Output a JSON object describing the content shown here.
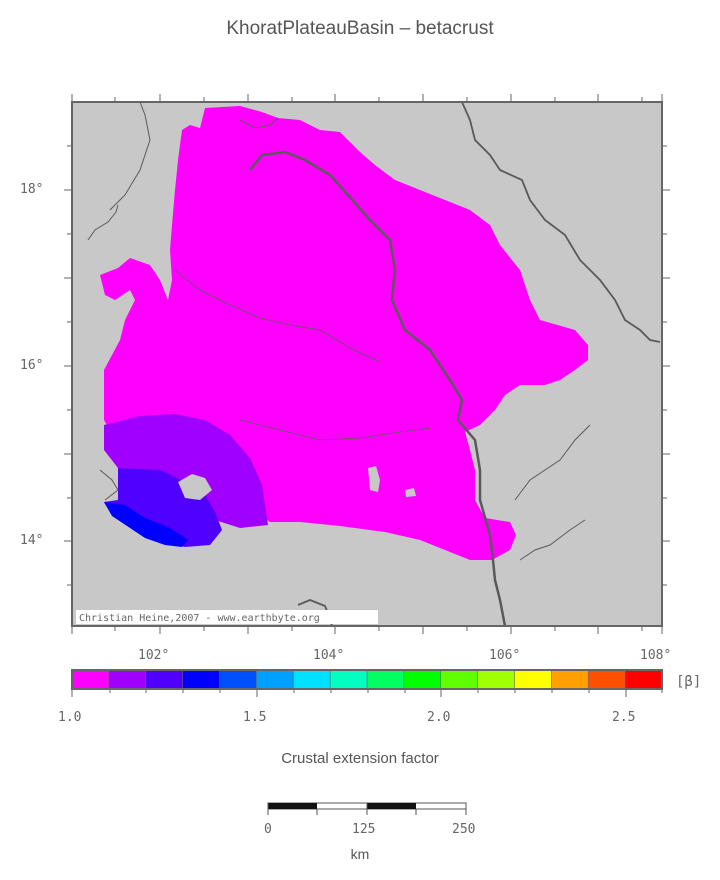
{
  "title": "KhoratPlateauBasin – betacrust",
  "credit": "Christian Heine,2007 - www.earthbyte.org",
  "axes": {
    "lat_ticks": [
      "18°",
      "16°",
      "14°"
    ],
    "lon_ticks": [
      "102°",
      "104°",
      "106°",
      "108°"
    ]
  },
  "colorbar": {
    "unit": "[β]",
    "tick_labels": [
      "1.0",
      "1.5",
      "2.0",
      "2.5"
    ],
    "colors": [
      "#ff00ff",
      "#a000ff",
      "#5000ff",
      "#0000ff",
      "#0050ff",
      "#00a0ff",
      "#00e0ff",
      "#00ffc0",
      "#00ff60",
      "#00ff00",
      "#60ff00",
      "#a0ff00",
      "#ffff00",
      "#ffa000",
      "#ff5000",
      "#ff0000"
    ]
  },
  "legend_label": "Crustal extension factor",
  "scalebar": {
    "labels": [
      "0",
      "125",
      "250"
    ],
    "unit": "km"
  },
  "colors": {
    "background": "#c8c8c8",
    "region_main": "#ff00ff",
    "region_mid": "#a000ff",
    "region_high": "#5000ff",
    "region_max": "#0000ff",
    "lines": "#5a5a5a"
  }
}
